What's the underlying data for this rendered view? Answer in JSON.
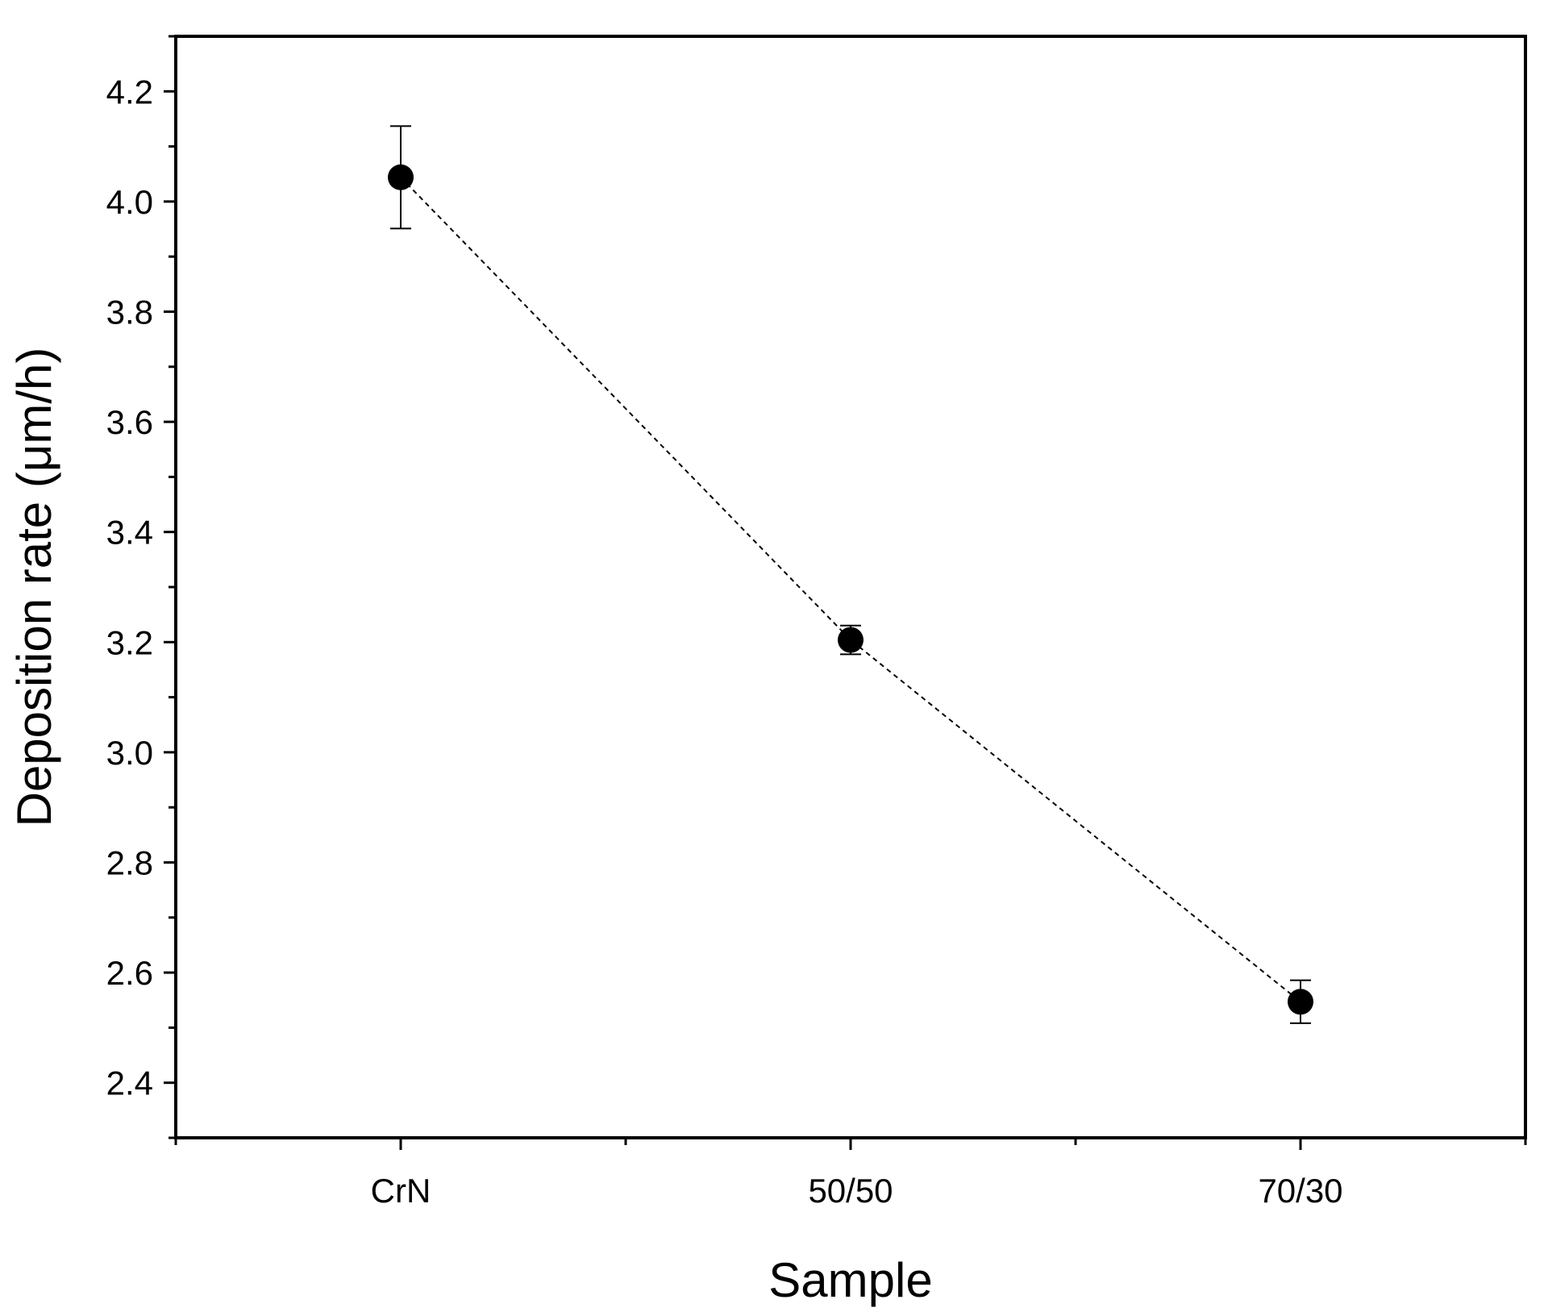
{
  "chart_data": {
    "type": "scatter",
    "title": "",
    "xlabel": "Sample",
    "ylabel": "Deposition rate (μm/h)",
    "categories": [
      "CrN",
      "50/50",
      "70/30"
    ],
    "series": [
      {
        "values": [
          4.044,
          3.204,
          2.547
        ],
        "errors": [
          0.093,
          0.026,
          0.039
        ],
        "marker": "filled-circle",
        "line": "dotted",
        "color": "#000000"
      }
    ],
    "ylim": [
      2.3,
      4.3
    ],
    "yticks": [
      "2.4",
      "2.6",
      "2.8",
      "3.0",
      "3.2",
      "3.4",
      "3.6",
      "3.8",
      "4.0",
      "4.2"
    ],
    "grid": false,
    "legend": "none"
  }
}
